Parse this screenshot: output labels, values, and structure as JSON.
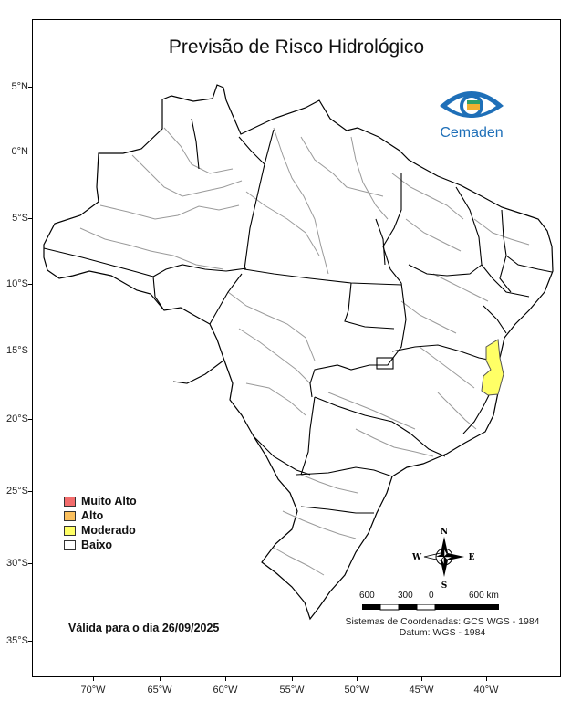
{
  "title": "Previsão de Risco Hidrológico",
  "logo": {
    "text": "Cemaden",
    "icon": "cemaden-eye-icon"
  },
  "latitude_labels": [
    "5°N",
    "0°N",
    "5°S",
    "10°S",
    "15°S",
    "20°S",
    "25°S",
    "30°S",
    "35°S"
  ],
  "longitude_labels": [
    "70°W",
    "65°W",
    "60°W",
    "55°W",
    "50°W",
    "45°W",
    "40°W"
  ],
  "legend": [
    {
      "label": "Muito Alto",
      "color": "#f26b6b"
    },
    {
      "label": "Alto",
      "color": "#fbc05e"
    },
    {
      "label": "Moderado",
      "color": "#ffff66"
    },
    {
      "label": "Baixo",
      "color": "#ffffff"
    }
  ],
  "valid_text": "Válida para o dia 26/09/2025",
  "compass": {
    "n": "N",
    "s": "S",
    "e": "E",
    "w": "W"
  },
  "scale": {
    "labels": [
      "600",
      "300",
      "0",
      "600 km"
    ]
  },
  "crs": {
    "line1": "Sistemas de Coordenadas: GCS WGS - 1984",
    "line2": "Datum: WGS - 1984"
  },
  "colors": {
    "state_border": "#000000",
    "basin_border": "#9a9a9a",
    "highlight": "#ffff66"
  }
}
